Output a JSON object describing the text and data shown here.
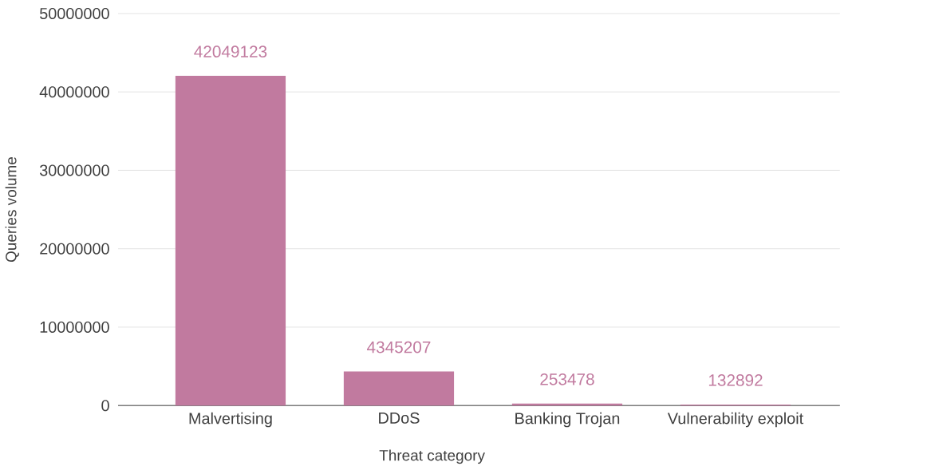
{
  "chart_data": {
    "type": "bar",
    "xlabel": "Threat category",
    "ylabel": "Queries volume",
    "categories": [
      "Malvertising",
      "DDoS",
      "Banking Trojan",
      "Vulnerability exploit"
    ],
    "values": [
      42049123,
      4345207,
      253478,
      132892
    ],
    "color": "#c17a9f",
    "ylim": [
      0,
      50000000
    ],
    "yticks": [
      0,
      10000000,
      20000000,
      30000000,
      40000000,
      50000000
    ],
    "grid": "y",
    "data_labels": true
  }
}
